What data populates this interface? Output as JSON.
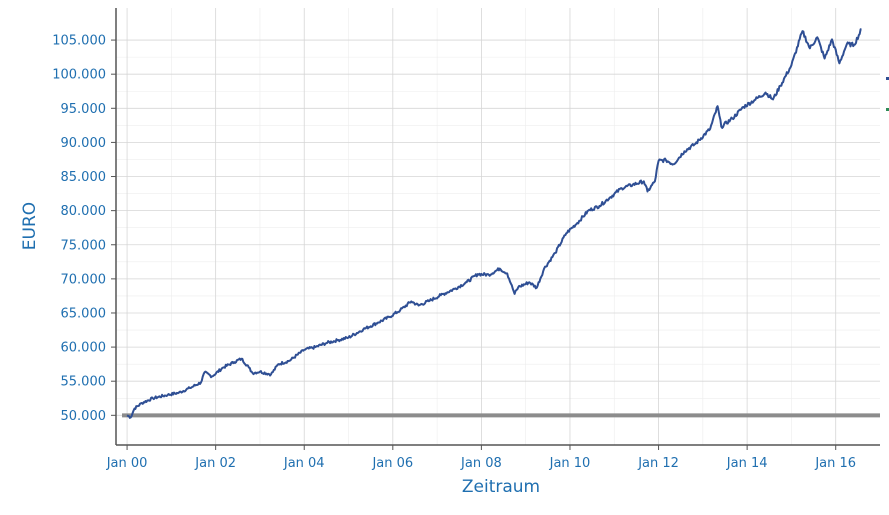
{
  "chart_data": {
    "type": "line",
    "title": "",
    "xlabel": "Zeitraum",
    "ylabel": "EURO",
    "x_ticks": [
      "Jan 00",
      "Jan 02",
      "Jan 04",
      "Jan 06",
      "Jan 08",
      "Jan 10",
      "Jan 12",
      "Jan 14",
      "Jan 16"
    ],
    "y_ticks": [
      "50.000",
      "55.000",
      "60.000",
      "65.000",
      "70.000",
      "75.000",
      "80.000",
      "85.000",
      "90.000",
      "95.000",
      "100.000",
      "105.000"
    ],
    "y_tick_values": [
      50000,
      55000,
      60000,
      65000,
      70000,
      75000,
      80000,
      85000,
      90000,
      95000,
      100000,
      105000
    ],
    "xlim": [
      "1999-10",
      "2017-01"
    ],
    "ylim": [
      45650,
      109700
    ],
    "grid": true,
    "reference_line": 50000,
    "series": [
      {
        "color": "#2f4f94",
        "points": [
          [
            "2000-01",
            50000
          ],
          [
            "2000-02",
            49700
          ],
          [
            "2000-03",
            51000
          ],
          [
            "2000-05",
            51800
          ],
          [
            "2000-08",
            52500
          ],
          [
            "2000-12",
            53000
          ],
          [
            "2001-03",
            53300
          ],
          [
            "2001-06",
            54000
          ],
          [
            "2001-09",
            54800
          ],
          [
            "2001-10",
            56300
          ],
          [
            "2001-12",
            55700
          ],
          [
            "2002-03",
            57000
          ],
          [
            "2002-06",
            57800
          ],
          [
            "2002-08",
            58300
          ],
          [
            "2002-10",
            57000
          ],
          [
            "2002-11",
            56200
          ],
          [
            "2003-01",
            56400
          ],
          [
            "2003-04",
            56000
          ],
          [
            "2003-06",
            57500
          ],
          [
            "2003-09",
            58000
          ],
          [
            "2004-01",
            59600
          ],
          [
            "2004-04",
            60000
          ],
          [
            "2004-07",
            60600
          ],
          [
            "2004-10",
            61000
          ],
          [
            "2005-01",
            61400
          ],
          [
            "2005-05",
            62600
          ],
          [
            "2005-09",
            63600
          ],
          [
            "2005-12",
            64400
          ],
          [
            "2006-03",
            65400
          ],
          [
            "2006-06",
            66700
          ],
          [
            "2006-08",
            66100
          ],
          [
            "2006-11",
            66800
          ],
          [
            "2007-02",
            67600
          ],
          [
            "2007-06",
            68600
          ],
          [
            "2007-09",
            69500
          ],
          [
            "2007-12",
            70700
          ],
          [
            "2008-03",
            70600
          ],
          [
            "2008-06",
            71500
          ],
          [
            "2008-08",
            70800
          ],
          [
            "2008-09",
            69300
          ],
          [
            "2008-10",
            67800
          ],
          [
            "2008-11",
            68800
          ],
          [
            "2009-02",
            69500
          ],
          [
            "2009-04",
            68700
          ],
          [
            "2009-06",
            71500
          ],
          [
            "2009-09",
            73800
          ],
          [
            "2009-12",
            76700
          ],
          [
            "2010-03",
            78200
          ],
          [
            "2010-06",
            80000
          ],
          [
            "2010-09",
            80700
          ],
          [
            "2010-12",
            82000
          ],
          [
            "2011-03",
            83300
          ],
          [
            "2011-06",
            83800
          ],
          [
            "2011-09",
            84300
          ],
          [
            "2011-10",
            82800
          ],
          [
            "2011-12",
            84300
          ],
          [
            "2012-01",
            87300
          ],
          [
            "2012-03",
            87400
          ],
          [
            "2012-05",
            86800
          ],
          [
            "2012-08",
            88700
          ],
          [
            "2012-11",
            89800
          ],
          [
            "2013-03",
            92000
          ],
          [
            "2013-05",
            95300
          ],
          [
            "2013-06",
            92300
          ],
          [
            "2013-09",
            93500
          ],
          [
            "2013-12",
            95200
          ],
          [
            "2014-03",
            96200
          ],
          [
            "2014-06",
            97300
          ],
          [
            "2014-08",
            96300
          ],
          [
            "2014-10",
            98300
          ],
          [
            "2015-01",
            101300
          ],
          [
            "2015-04",
            106300
          ],
          [
            "2015-06",
            103800
          ],
          [
            "2015-08",
            105400
          ],
          [
            "2015-10",
            102300
          ],
          [
            "2015-12",
            105100
          ],
          [
            "2016-02",
            101600
          ],
          [
            "2016-04",
            104400
          ],
          [
            "2016-06",
            104300
          ],
          [
            "2016-08",
            106600
          ]
        ]
      }
    ],
    "legend_marks": [
      {
        "color": "#2f4f94"
      },
      {
        "color": "#2e8b57"
      }
    ]
  }
}
